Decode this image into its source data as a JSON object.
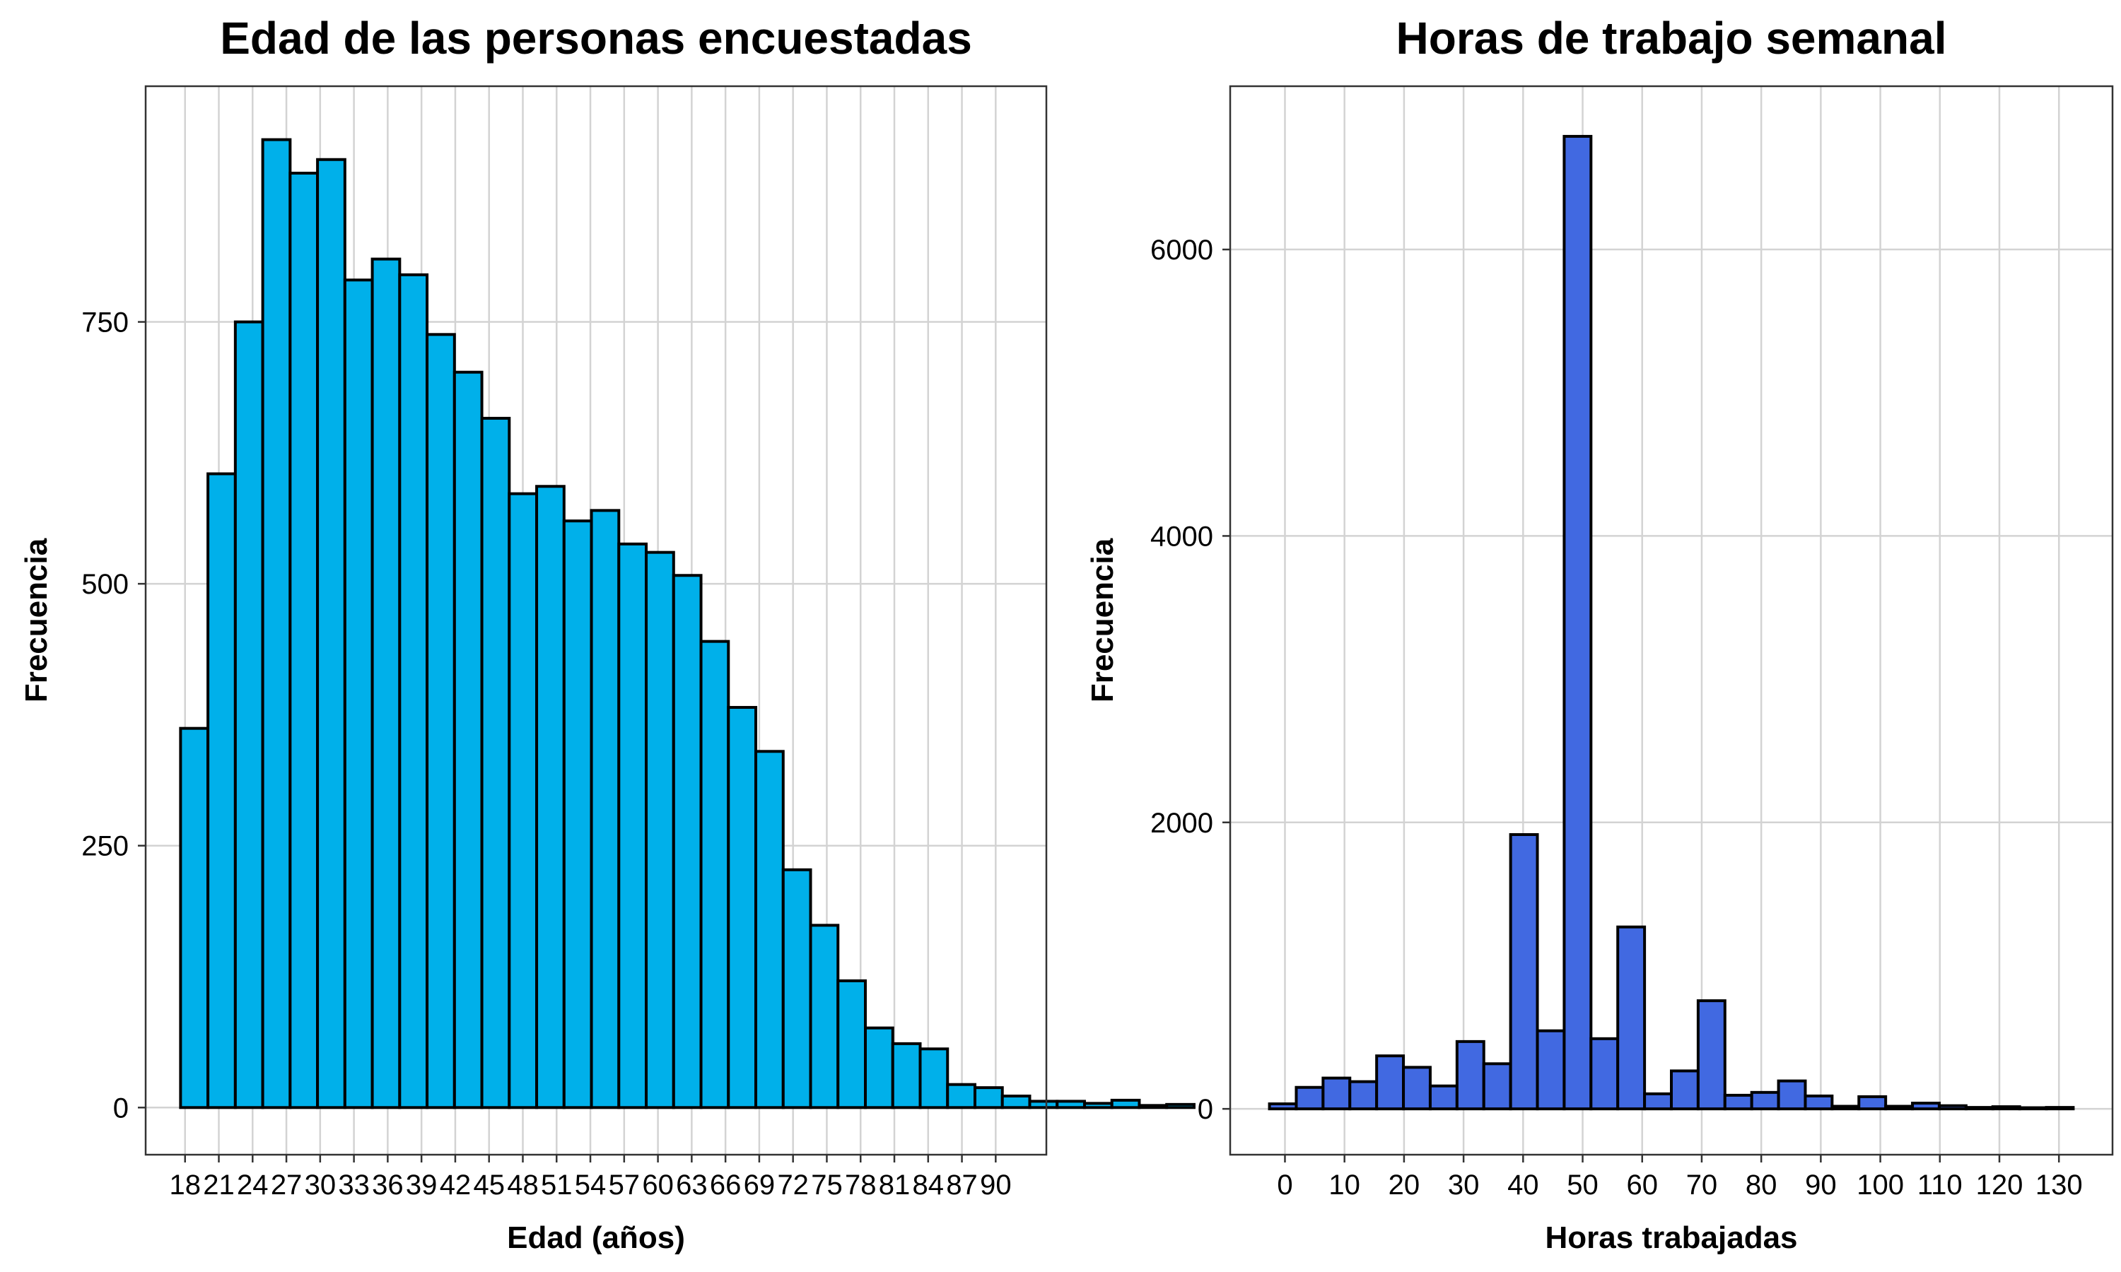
{
  "chart_data": [
    {
      "type": "bar",
      "title": "Edad de las personas encuestadas",
      "xlabel": "Edad (años)",
      "ylabel": "Frecuencia",
      "bar_color": "#00b0ea",
      "x_tick_values": [
        18,
        21,
        24,
        27,
        30,
        33,
        36,
        39,
        42,
        45,
        48,
        51,
        54,
        57,
        60,
        63,
        66,
        69,
        72,
        75,
        78,
        81,
        84,
        87,
        90
      ],
      "x_tick_labels": [
        "18",
        "21",
        "24",
        "27",
        "30",
        "33",
        "36",
        "39",
        "42",
        "45",
        "48",
        "51",
        "54",
        "57",
        "60",
        "63",
        "66",
        "69",
        "72",
        "75",
        "78",
        "81",
        "84",
        "87",
        "90"
      ],
      "y_tick_values": [
        0,
        250,
        500,
        750
      ],
      "y_tick_labels": [
        "0",
        "250",
        "500",
        "750"
      ],
      "xlim": [
        14.5,
        94.5
      ],
      "ylim": [
        -45,
        975
      ],
      "bin_width": 2.433,
      "bin_start": 17.6,
      "values": [
        362,
        605,
        750,
        924,
        892,
        905,
        790,
        810,
        795,
        738,
        702,
        658,
        586,
        593,
        560,
        570,
        538,
        530,
        508,
        445,
        382,
        340,
        227,
        174,
        121,
        76,
        61,
        56,
        22,
        19,
        11,
        6,
        6,
        4,
        7,
        2,
        3
      ],
      "grid": true
    },
    {
      "type": "bar",
      "title": "Horas de trabajo semanal",
      "xlabel": "Horas trabajadas",
      "ylabel": "Frecuencia",
      "bar_color": "#4169e1",
      "x_tick_values": [
        0,
        10,
        20,
        30,
        40,
        50,
        60,
        70,
        80,
        90,
        100,
        110,
        120,
        130
      ],
      "x_tick_labels": [
        "0",
        "10",
        "20",
        "30",
        "40",
        "50",
        "60",
        "70",
        "80",
        "90",
        "100",
        "110",
        "120",
        "130"
      ],
      "y_tick_values": [
        0,
        2000,
        4000,
        6000
      ],
      "y_tick_labels": [
        "0",
        "2000",
        "4000",
        "6000"
      ],
      "xlim": [
        -9.2,
        139
      ],
      "ylim": [
        -320,
        7140
      ],
      "bin_width": 4.5,
      "bin_start": -2.6,
      "values": [
        35,
        150,
        215,
        190,
        370,
        290,
        160,
        470,
        315,
        1915,
        545,
        6790,
        490,
        1270,
        105,
        265,
        755,
        95,
        115,
        195,
        90,
        18,
        85,
        18,
        40,
        22,
        10,
        15,
        8,
        10
      ],
      "grid": true
    }
  ]
}
